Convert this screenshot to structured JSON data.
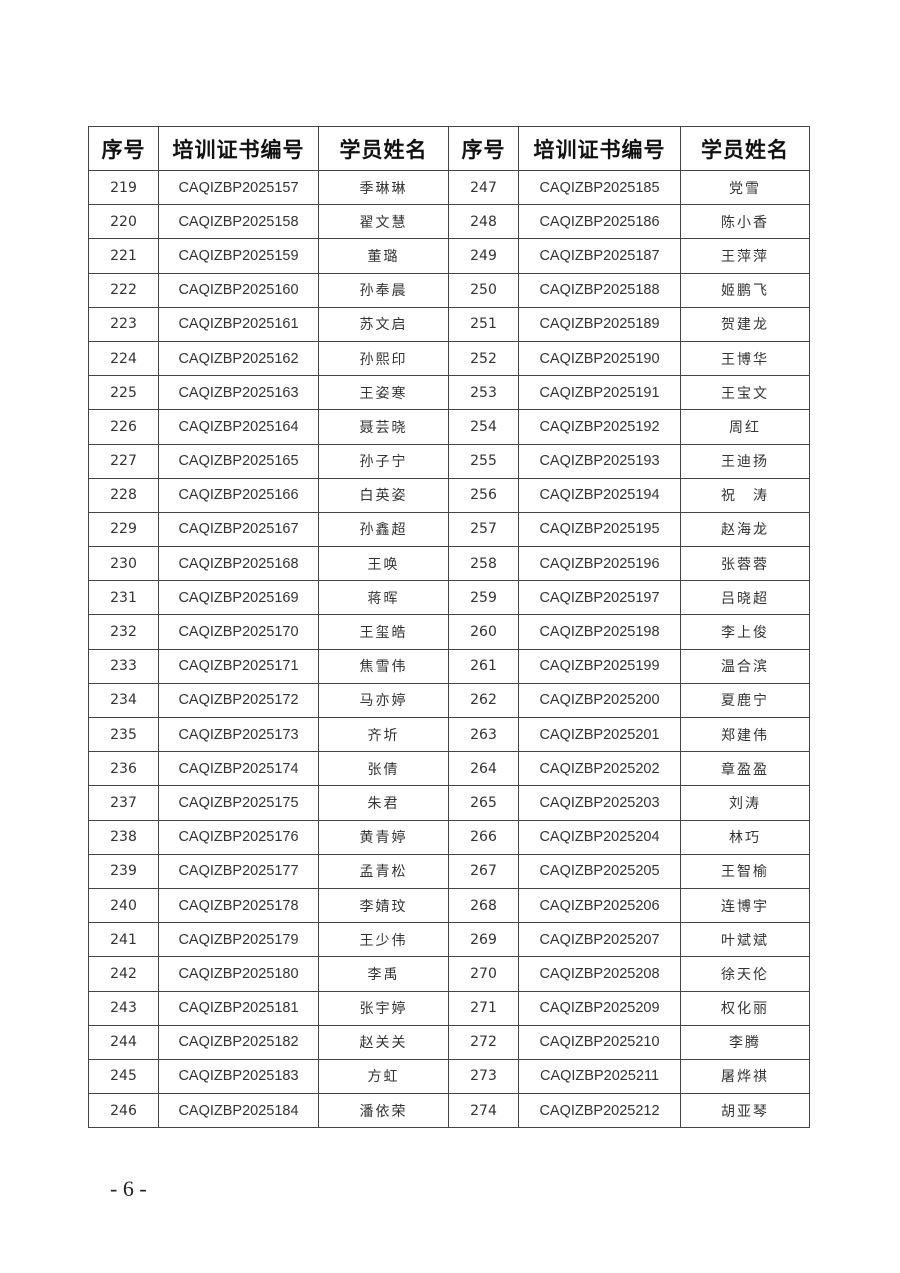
{
  "headers": [
    "序号",
    "培训证书编号",
    "学员姓名",
    "序号",
    "培训证书编号",
    "学员姓名"
  ],
  "rows": [
    [
      "219",
      "CAQIZBP2025157",
      "季琳琳",
      "247",
      "CAQIZBP2025185",
      "党雪"
    ],
    [
      "220",
      "CAQIZBP2025158",
      "翟文慧",
      "248",
      "CAQIZBP2025186",
      "陈小香"
    ],
    [
      "221",
      "CAQIZBP2025159",
      "董璐",
      "249",
      "CAQIZBP2025187",
      "王萍萍"
    ],
    [
      "222",
      "CAQIZBP2025160",
      "孙奉晨",
      "250",
      "CAQIZBP2025188",
      "姬鹏飞"
    ],
    [
      "223",
      "CAQIZBP2025161",
      "苏文启",
      "251",
      "CAQIZBP2025189",
      "贺建龙"
    ],
    [
      "224",
      "CAQIZBP2025162",
      "孙熙印",
      "252",
      "CAQIZBP2025190",
      "王博华"
    ],
    [
      "225",
      "CAQIZBP2025163",
      "王姿寒",
      "253",
      "CAQIZBP2025191",
      "王宝文"
    ],
    [
      "226",
      "CAQIZBP2025164",
      "聂芸晓",
      "254",
      "CAQIZBP2025192",
      "周红"
    ],
    [
      "227",
      "CAQIZBP2025165",
      "孙子宁",
      "255",
      "CAQIZBP2025193",
      "王迪扬"
    ],
    [
      "228",
      "CAQIZBP2025166",
      "白英姿",
      "256",
      "CAQIZBP2025194",
      "祝　涛"
    ],
    [
      "229",
      "CAQIZBP2025167",
      "孙鑫超",
      "257",
      "CAQIZBP2025195",
      "赵海龙"
    ],
    [
      "230",
      "CAQIZBP2025168",
      "王唤",
      "258",
      "CAQIZBP2025196",
      "张蓉蓉"
    ],
    [
      "231",
      "CAQIZBP2025169",
      "蒋晖",
      "259",
      "CAQIZBP2025197",
      "吕晓超"
    ],
    [
      "232",
      "CAQIZBP2025170",
      "王玺皓",
      "260",
      "CAQIZBP2025198",
      "李上俊"
    ],
    [
      "233",
      "CAQIZBP2025171",
      "焦雪伟",
      "261",
      "CAQIZBP2025199",
      "温合滨"
    ],
    [
      "234",
      "CAQIZBP2025172",
      "马亦婷",
      "262",
      "CAQIZBP2025200",
      "夏鹿宁"
    ],
    [
      "235",
      "CAQIZBP2025173",
      "齐圻",
      "263",
      "CAQIZBP2025201",
      "郑建伟"
    ],
    [
      "236",
      "CAQIZBP2025174",
      "张倩",
      "264",
      "CAQIZBP2025202",
      "章盈盈"
    ],
    [
      "237",
      "CAQIZBP2025175",
      "朱君",
      "265",
      "CAQIZBP2025203",
      "刘涛"
    ],
    [
      "238",
      "CAQIZBP2025176",
      "黄青婷",
      "266",
      "CAQIZBP2025204",
      "林巧"
    ],
    [
      "239",
      "CAQIZBP2025177",
      "孟青松",
      "267",
      "CAQIZBP2025205",
      "王智榆"
    ],
    [
      "240",
      "CAQIZBP2025178",
      "李婧玟",
      "268",
      "CAQIZBP2025206",
      "连博宇"
    ],
    [
      "241",
      "CAQIZBP2025179",
      "王少伟",
      "269",
      "CAQIZBP2025207",
      "叶斌斌"
    ],
    [
      "242",
      "CAQIZBP2025180",
      "李禹",
      "270",
      "CAQIZBP2025208",
      "徐天伦"
    ],
    [
      "243",
      "CAQIZBP2025181",
      "张宇婷",
      "271",
      "CAQIZBP2025209",
      "权化丽"
    ],
    [
      "244",
      "CAQIZBP2025182",
      "赵关关",
      "272",
      "CAQIZBP2025210",
      "李腾"
    ],
    [
      "245",
      "CAQIZBP2025183",
      "方虹",
      "273",
      "CAQIZBP2025211",
      "屠烨祺"
    ],
    [
      "246",
      "CAQIZBP2025184",
      "潘依荣",
      "274",
      "CAQIZBP2025212",
      "胡亚琴"
    ]
  ],
  "page_number": "- 6 -"
}
